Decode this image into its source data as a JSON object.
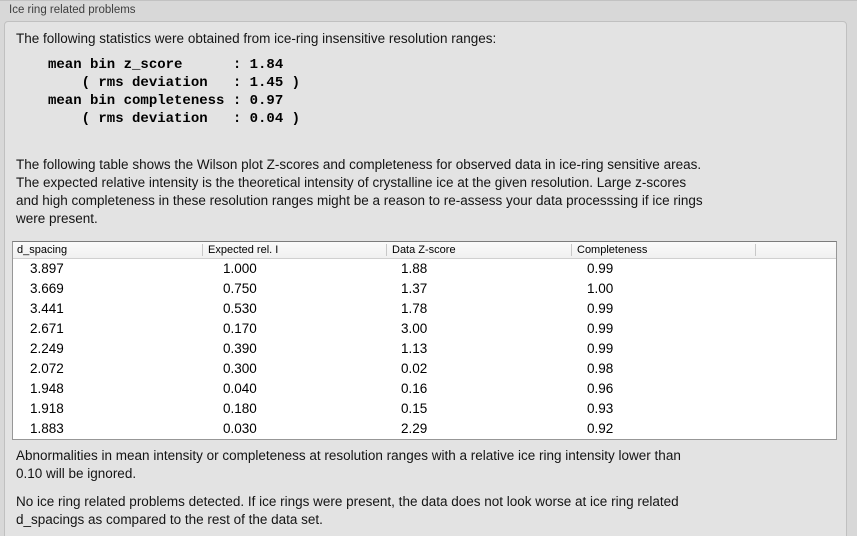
{
  "colors": {
    "outer_background": "#d8d8d8",
    "panel_background": "#e3e3e3",
    "table_background": "#ffffff",
    "table_border": "#979797",
    "header_background": "#f0f0f0",
    "text": "#141414"
  },
  "panel": {
    "title": "Ice ring related problems"
  },
  "stats_section": {
    "intro": "The following statistics were obtained from ice-ring insensitive resolution ranges:",
    "lines": [
      "mean bin z_score      : 1.84",
      "    ( rms deviation   : 1.45 )",
      "mean bin completeness : 0.97",
      "    ( rms deviation   : 0.04 )"
    ]
  },
  "table_description": [
    "The following table shows the Wilson plot Z-scores and completeness for observed data in ice-ring sensitive areas.",
    "The expected relative intensity is the theoretical intensity of crystalline ice at the given resolution. Large z-scores",
    "and high completeness in these resolution ranges might be a reason to re-assess your data processsing if ice rings",
    "were present."
  ],
  "table": {
    "columns": [
      "d_spacing",
      "Expected rel. I",
      "Data Z-score",
      "Completeness"
    ],
    "rows": [
      [
        "3.897",
        "1.000",
        "1.88",
        "0.99"
      ],
      [
        "3.669",
        "0.750",
        "1.37",
        "1.00"
      ],
      [
        "3.441",
        "0.530",
        "1.78",
        "0.99"
      ],
      [
        "2.671",
        "0.170",
        "3.00",
        "0.99"
      ],
      [
        "2.249",
        "0.390",
        "1.13",
        "0.99"
      ],
      [
        "2.072",
        "0.300",
        "0.02",
        "0.98"
      ],
      [
        "1.948",
        "0.040",
        "0.16",
        "0.96"
      ],
      [
        "1.918",
        "0.180",
        "0.15",
        "0.93"
      ],
      [
        "1.883",
        "0.030",
        "2.29",
        "0.92"
      ]
    ]
  },
  "notes": {
    "ignore_rule": [
      "Abnormalities in mean intensity or completeness at resolution ranges with a relative ice ring intensity lower than",
      "0.10 will be ignored."
    ],
    "conclusion": [
      "No ice ring related problems detected. If ice rings were present, the data does not look worse at ice ring related",
      "d_spacings as compared to the rest of the data set."
    ]
  }
}
